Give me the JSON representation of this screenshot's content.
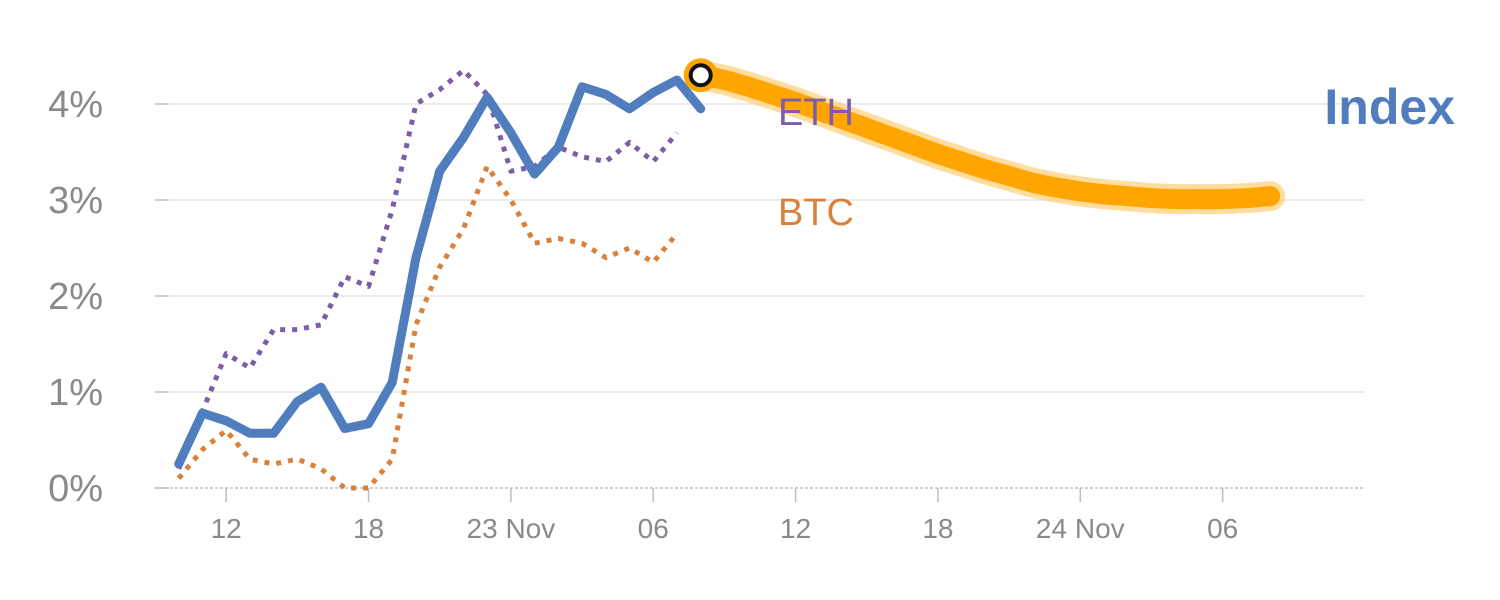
{
  "colors": {
    "index": "#4f7dbd",
    "eth": "#7b5ea7",
    "btc": "#d9813a",
    "forecast": "#ffa500",
    "forecast_glow": "#ffd27f",
    "grid": "#e6e6e6",
    "axis": "#bdbdbd",
    "tick_text": "#8a8a8a"
  },
  "chart_data": {
    "type": "line",
    "y_unit": "%",
    "ylim": [
      0,
      4.5
    ],
    "yticks": [
      0,
      1,
      2,
      3,
      4
    ],
    "ytick_labels": [
      "0%",
      "1%",
      "2%",
      "3%",
      "4%"
    ],
    "xlim": [
      9,
      60
    ],
    "xticks": [
      12,
      18,
      24,
      30,
      36,
      42,
      48,
      54
    ],
    "xtick_labels": [
      "12",
      "18",
      "23 Nov",
      "06",
      "12",
      "18",
      "24 Nov",
      "06"
    ],
    "grid": true,
    "series": [
      {
        "name": "ETH",
        "style": "dotted",
        "x": [
          10,
          11,
          12,
          13,
          14,
          15,
          16,
          17,
          18,
          19,
          20,
          21,
          22,
          23,
          24,
          25,
          26,
          27,
          28,
          29,
          30,
          31
        ],
        "y": [
          0.2,
          0.8,
          1.4,
          1.25,
          1.65,
          1.65,
          1.7,
          2.2,
          2.1,
          2.9,
          4.0,
          4.15,
          4.35,
          4.1,
          3.3,
          3.35,
          3.55,
          3.45,
          3.4,
          3.6,
          3.4,
          3.7
        ]
      },
      {
        "name": "BTC",
        "style": "dotted",
        "x": [
          10,
          11,
          12,
          13,
          14,
          15,
          16,
          17,
          18,
          19,
          20,
          21,
          22,
          23,
          24,
          25,
          26,
          27,
          28,
          29,
          30,
          31
        ],
        "y": [
          0.1,
          0.4,
          0.6,
          0.3,
          0.25,
          0.3,
          0.2,
          0.0,
          0.0,
          0.3,
          1.7,
          2.3,
          2.7,
          3.35,
          3.0,
          2.55,
          2.6,
          2.55,
          2.4,
          2.5,
          2.35,
          2.65
        ]
      },
      {
        "name": "Index",
        "style": "solid",
        "x": [
          10,
          11,
          12,
          13,
          14,
          15,
          16,
          17,
          18,
          19,
          20,
          21,
          22,
          23,
          24,
          25,
          26,
          27,
          28,
          29,
          30,
          31,
          32
        ],
        "y": [
          0.25,
          0.78,
          0.7,
          0.57,
          0.57,
          0.9,
          1.05,
          0.62,
          0.67,
          1.1,
          2.4,
          3.3,
          3.65,
          4.07,
          3.7,
          3.27,
          3.55,
          4.18,
          4.1,
          3.95,
          4.12,
          4.25,
          3.95
        ]
      }
    ],
    "forecast": {
      "style": "thick-smooth",
      "x": [
        32,
        33,
        34,
        35,
        36,
        37,
        38,
        39,
        40,
        41,
        42,
        43,
        44,
        45,
        46,
        47,
        48,
        49,
        50,
        51,
        52,
        53,
        54,
        55,
        56
      ],
      "y": [
        4.3,
        4.25,
        4.18,
        4.1,
        4.02,
        3.93,
        3.84,
        3.75,
        3.66,
        3.57,
        3.48,
        3.4,
        3.32,
        3.25,
        3.18,
        3.13,
        3.09,
        3.06,
        3.04,
        3.02,
        3.01,
        3.01,
        3.01,
        3.02,
        3.04
      ]
    },
    "marker": {
      "x": 32,
      "y": 4.3
    },
    "annotations": [
      {
        "text": "ETH",
        "series": "ETH"
      },
      {
        "text": "BTC",
        "series": "BTC"
      },
      {
        "text": "Index",
        "series": "Index"
      }
    ]
  }
}
